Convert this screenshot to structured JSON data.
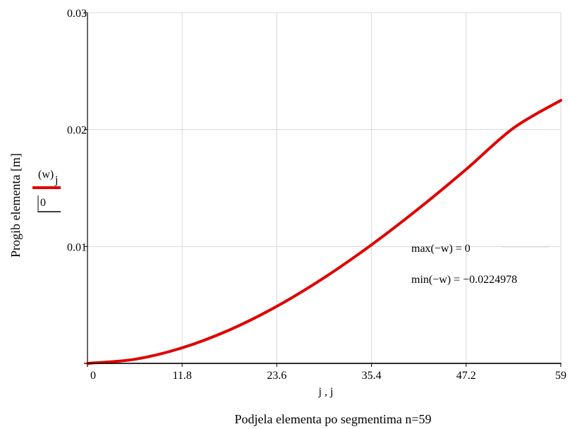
{
  "chart_data": {
    "type": "line",
    "xlabel": "j , j",
    "ylabel": "Progib elementa [m]",
    "caption": "Podjela elementa po segmentima n=59",
    "xlim": [
      0,
      59
    ],
    "ylim": [
      0,
      0.03
    ],
    "x_ticks": [
      "0",
      "11.8",
      "23.6",
      "35.4",
      "47.2",
      "59"
    ],
    "y_ticks": [
      "0.01",
      "0.02",
      "0.03"
    ],
    "grid": true,
    "legend": {
      "position": "left",
      "entries": [
        {
          "label_main": "(w)",
          "label_sub": "j",
          "color": "#e00000"
        },
        {
          "label_main": "0",
          "label_sub": "",
          "color": "#000000"
        }
      ]
    },
    "annotations": [
      "max(−w) = 0",
      "min(−w) = −0.0224978"
    ],
    "series": [
      {
        "name": "(w)j",
        "color": "#e00000",
        "x": [
          0,
          5.9,
          11.8,
          17.7,
          23.6,
          29.5,
          35.4,
          41.3,
          47.2,
          53.1,
          59
        ],
        "y": [
          0,
          0.00035,
          0.00133,
          0.00286,
          0.00488,
          0.00733,
          0.01014,
          0.01325,
          0.0166,
          0.02013,
          0.0225
        ]
      },
      {
        "name": "0",
        "color": "#000000",
        "x": [
          0,
          59
        ],
        "y": [
          0,
          0
        ]
      }
    ]
  }
}
